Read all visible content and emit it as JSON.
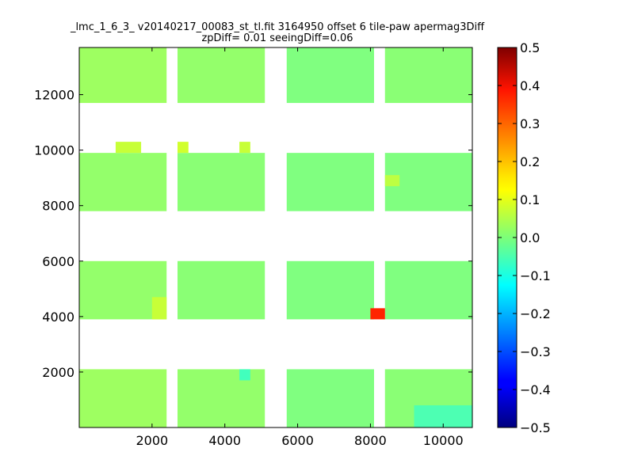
{
  "chart_data": {
    "type": "heatmap",
    "title": "_lmc_1_6_3_ v20140217_00083_st_tl.fit 3164950 offset 6 tile-paw apermag3Diff",
    "subtitle": "zpDiff= 0.01 seeingDiff=0.06",
    "xlabel": "",
    "ylabel": "",
    "xlim": [
      0,
      10800
    ],
    "ylim": [
      0,
      13700
    ],
    "x_ticks": [
      2000,
      4000,
      6000,
      8000,
      10000
    ],
    "y_ticks": [
      2000,
      4000,
      6000,
      8000,
      10000,
      12000
    ],
    "colorbar": {
      "range": [
        -0.5,
        0.5
      ],
      "ticks": [
        "0.5",
        "0.4",
        "0.3",
        "0.2",
        "0.1",
        "0.0",
        "−0.1",
        "−0.2",
        "−0.3",
        "−0.4",
        "−0.5"
      ],
      "colormap": "jet"
    },
    "grid": false,
    "typical_value": 0.02,
    "detector_columns": [
      [
        0,
        2400
      ],
      [
        2700,
        5100
      ],
      [
        5700,
        8100
      ],
      [
        8400,
        10800
      ]
    ],
    "detector_rows": [
      [
        0,
        2100
      ],
      [
        3900,
        6000
      ],
      [
        7800,
        9900
      ],
      [
        11700,
        13700
      ]
    ],
    "fill_values": [
      [
        0.03,
        0.02,
        0.0,
        0.01
      ],
      [
        0.02,
        0.01,
        0.0,
        0.0
      ],
      [
        0.02,
        0.01,
        0.0,
        0.0
      ],
      [
        0.03,
        0.02,
        0.0,
        0.01
      ]
    ],
    "highlights": [
      {
        "x": [
          8000,
          8400
        ],
        "y": [
          3900,
          4300
        ],
        "value": 0.34
      },
      {
        "x": [
          2000,
          2400
        ],
        "y": [
          3900,
          4700
        ],
        "value": 0.07
      },
      {
        "x": [
          1000,
          1700
        ],
        "y": [
          9900,
          10300
        ],
        "value": 0.07
      },
      {
        "x": [
          2700,
          3000
        ],
        "y": [
          9900,
          10300
        ],
        "value": 0.08
      },
      {
        "x": [
          4400,
          4700
        ],
        "y": [
          9900,
          10300
        ],
        "value": 0.07
      },
      {
        "x": [
          8400,
          8800
        ],
        "y": [
          8700,
          9100
        ],
        "value": 0.06
      },
      {
        "x": [
          4400,
          4700
        ],
        "y": [
          1700,
          2100
        ],
        "value": -0.06
      },
      {
        "x": [
          9200,
          10800
        ],
        "y": [
          0,
          800
        ],
        "value": -0.05
      }
    ]
  }
}
